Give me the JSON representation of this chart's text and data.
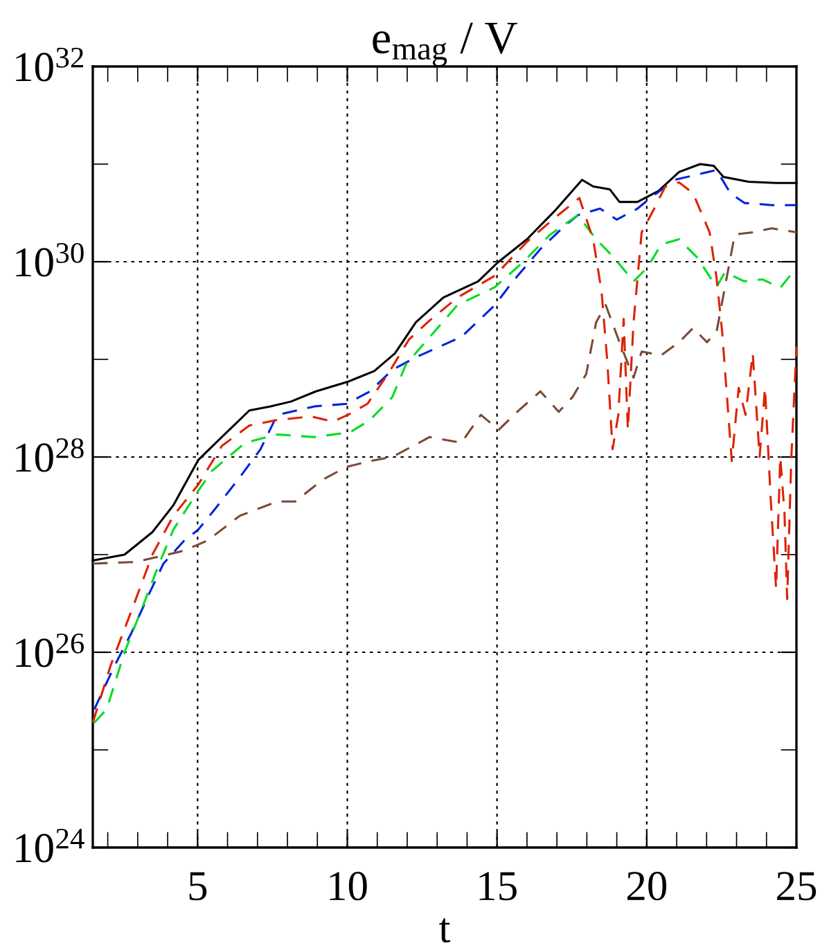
{
  "chart_data": {
    "type": "line",
    "title": "e$_{mag}$ / V",
    "xlabel": "t",
    "log": "y",
    "grid": true,
    "legend": false,
    "xlim": [
      1.5,
      25
    ],
    "ylim": [
      1e+24,
      1e+32
    ],
    "xticks": [
      {
        "value": 2,
        "label": null
      },
      {
        "value": 3,
        "label": null
      },
      {
        "value": 4,
        "label": null
      },
      5,
      {
        "value": 6,
        "label": null
      },
      {
        "value": 7,
        "label": null
      },
      {
        "value": 8,
        "label": null
      },
      {
        "value": 9,
        "label": null
      },
      10,
      {
        "value": 11,
        "label": null
      },
      {
        "value": 12,
        "label": null
      },
      {
        "value": 13,
        "label": null
      },
      {
        "value": 14,
        "label": null
      },
      15,
      {
        "value": 16,
        "label": null
      },
      {
        "value": 17,
        "label": null
      },
      {
        "value": 18,
        "label": null
      },
      {
        "value": 19,
        "label": null
      },
      20,
      {
        "value": 21,
        "label": null
      },
      {
        "value": 22,
        "label": null
      },
      {
        "value": 23,
        "label": null
      },
      {
        "value": 24,
        "label": null
      },
      25
    ],
    "yticks": [
      {
        "value": 1e+24,
        "label": "10$^{24}$"
      },
      {
        "value": 1e+25,
        "label": null
      },
      {
        "value": 1e+26,
        "label": "10$^{26}$"
      },
      {
        "value": 1e+27,
        "label": null
      },
      {
        "value": 1e+28,
        "label": "10$^{28}$"
      },
      {
        "value": 1e+29,
        "label": null
      },
      {
        "value": 1e+30,
        "label": "10$^{30}$"
      },
      {
        "value": 1e+31,
        "label": null
      },
      {
        "value": 1e+32,
        "label": "10$^{32}$"
      }
    ],
    "series": [
      {
        "color": "#000000",
        "line_style": "solid",
        "x": [
          1.5,
          2.56,
          3.49,
          4.19,
          5.02,
          5.81,
          6.73,
          7.43,
          8.12,
          8.95,
          10.02,
          10.9,
          11.59,
          12.29,
          13.21,
          14.37,
          15.02,
          16.0,
          16.92,
          17.84,
          18.21,
          18.77,
          19.09,
          19.69,
          20.39,
          21.08,
          21.78,
          22.24,
          22.56,
          23.4,
          24.32,
          25
        ],
        "values": [
          8.7e+26,
          1e+27,
          1.7e+27,
          3.2e+27,
          9.3e+27,
          1.6e+28,
          3e+28,
          3.3e+28,
          3.7e+28,
          4.7e+28,
          5.9e+28,
          7.6e+28,
          1.15e+29,
          2.4e+29,
          4.3e+29,
          6.3e+29,
          9.8e+29,
          1.7e+30,
          3.3e+30,
          6.9e+30,
          5.9e+30,
          5.5e+30,
          4.1e+30,
          4.1e+30,
          5.3e+30,
          8.3e+30,
          1e+31,
          9.6e+30,
          7.4e+30,
          6.6e+30,
          6.4e+30,
          6.4e+30
        ]
      },
      {
        "color": "#0022dd",
        "line_style": "dashed",
        "x": [
          1.55,
          2.19,
          2.8,
          3.35,
          3.86,
          4.56,
          5.02,
          5.57,
          6.41,
          7.1,
          7.66,
          8.91,
          9.97,
          10.76,
          11.5,
          12.29,
          13.81,
          14.93,
          15.53,
          16.45,
          17.24,
          17.7,
          18.44,
          19.0,
          19.69,
          20.16,
          20.94,
          22.33,
          22.8,
          23.26,
          24.18,
          25
        ],
        "values": [
          2.6e+25,
          6.9e+25,
          1.6e+26,
          3.8e+26,
          8.1e+26,
          1.4e+27,
          1.8e+27,
          2.9e+27,
          6.2e+27,
          1.2e+28,
          2.7e+28,
          3.3e+28,
          3.5e+28,
          4.7e+28,
          7.8e+28,
          1.05e+29,
          1.7e+29,
          3.6e+29,
          6.3e+29,
          1.35e+30,
          2.3e+30,
          3e+30,
          3.5e+30,
          2.7e+30,
          3.5e+30,
          4.6e+30,
          6.9e+30,
          8.7e+30,
          5e+30,
          4e+30,
          3.8e+30,
          3.8e+30
        ]
      },
      {
        "color": "#00dd22",
        "line_style": "dashed",
        "x": [
          1.55,
          1.96,
          2.56,
          3.12,
          3.72,
          4.19,
          5.02,
          5.48,
          6.59,
          7.66,
          8.91,
          10.11,
          10.76,
          11.5,
          11.96,
          13.68,
          14.93,
          15.85,
          16.78,
          17.7,
          18.31,
          18.91,
          19.56,
          20.02,
          20.48,
          21.08,
          21.69,
          22.33,
          22.61,
          23.26,
          23.86,
          24.46,
          25
        ],
        "values": [
          1.9e+25,
          2.6e+25,
          1e+26,
          2.7e+26,
          8.1e+26,
          1.8e+27,
          4.5e+27,
          7.2e+27,
          1.4e+28,
          1.7e+28,
          1.6e+28,
          1.8e+28,
          2.4e+28,
          4.1e+28,
          8.9e+28,
          3.6e+29,
          5.5e+29,
          9.8e+29,
          1.9e+30,
          3e+30,
          1.7e+30,
          1.1e+30,
          6.3e+29,
          8.7e+29,
          1.5e+30,
          1.7e+30,
          1.1e+30,
          5.5e+29,
          7.8e+29,
          6.3e+29,
          6.6e+29,
          5.4e+29,
          8.7e+29
        ]
      },
      {
        "color": "#dd2200",
        "line_style": "dashed",
        "x": [
          1.5,
          2.1,
          2.8,
          3.49,
          4.19,
          5.02,
          5.81,
          6.73,
          7.66,
          8.81,
          9.51,
          10.02,
          10.67,
          11.36,
          12.06,
          12.75,
          13.68,
          14.93,
          16.0,
          16.92,
          17.75,
          18.21,
          18.49,
          18.68,
          18.86,
          19.05,
          19.23,
          19.37,
          19.56,
          19.83,
          20.25,
          20.62,
          21.08,
          21.55,
          22.1,
          22.33,
          22.52,
          22.84,
          23.07,
          23.3,
          23.54,
          23.77,
          23.95,
          24.14,
          24.32,
          24.46,
          24.6,
          24.69,
          24.83,
          25
        ],
        "values": [
          1.9e+25,
          7.4e+25,
          2.7e+26,
          1e+27,
          2.5e+27,
          5.2e+27,
          1.3e+28,
          2.1e+28,
          2.4e+28,
          2.6e+28,
          2.3e+28,
          2.7e+28,
          3.5e+28,
          7.1e+28,
          1.6e+29,
          2.5e+29,
          4.3e+29,
          7.2e+29,
          1.6e+30,
          2.8e+30,
          4.5e+30,
          1.7e+30,
          5e+29,
          9.8e+28,
          1.2e+28,
          2.7e+28,
          2.6e+29,
          1.9e+28,
          2.4e+29,
          2e+30,
          3.5e+30,
          5.9e+30,
          6.5e+30,
          5e+30,
          2e+30,
          6.9e+29,
          1.9e+29,
          9.1e+27,
          5.1e+28,
          2.7e+28,
          1.15e+29,
          1e+28,
          5.1e+28,
          3.7e+27,
          4.5e+26,
          1e+28,
          2.7e+27,
          3.5e+26,
          1e+28,
          1.35e+29
        ]
      },
      {
        "color": "#7a4a35",
        "line_style": "dashed",
        "x": [
          1.5,
          2.89,
          3.49,
          4.56,
          5.34,
          6.41,
          7.66,
          8.26,
          9.19,
          9.97,
          10.76,
          11.5,
          12.75,
          13.81,
          14.46,
          15.06,
          15.67,
          16.45,
          17.06,
          17.52,
          17.98,
          18.31,
          18.63,
          19.09,
          19.56,
          19.83,
          20.48,
          21.08,
          21.55,
          22.01,
          22.33,
          22.94,
          23.54,
          24.18,
          25
        ],
        "values": [
          8.1e+26,
          8.4e+26,
          9.2e+26,
          1.1e+27,
          1.4e+27,
          2.5e+27,
          3.5e+27,
          3.5e+27,
          5.9e+27,
          7.9e+27,
          9.1e+27,
          1e+28,
          1.6e+28,
          1.4e+28,
          2.7e+28,
          1.9e+28,
          2.9e+28,
          4.7e+28,
          2.9e+28,
          4.1e+28,
          7.1e+28,
          2.4e+29,
          3.6e+29,
          1.5e+29,
          6.5e+28,
          1.2e+29,
          1.1e+29,
          1.5e+29,
          2.1e+29,
          1.5e+29,
          1.9e+29,
          1.9e+30,
          2e+30,
          2.2e+30,
          2e+30
        ]
      }
    ]
  }
}
